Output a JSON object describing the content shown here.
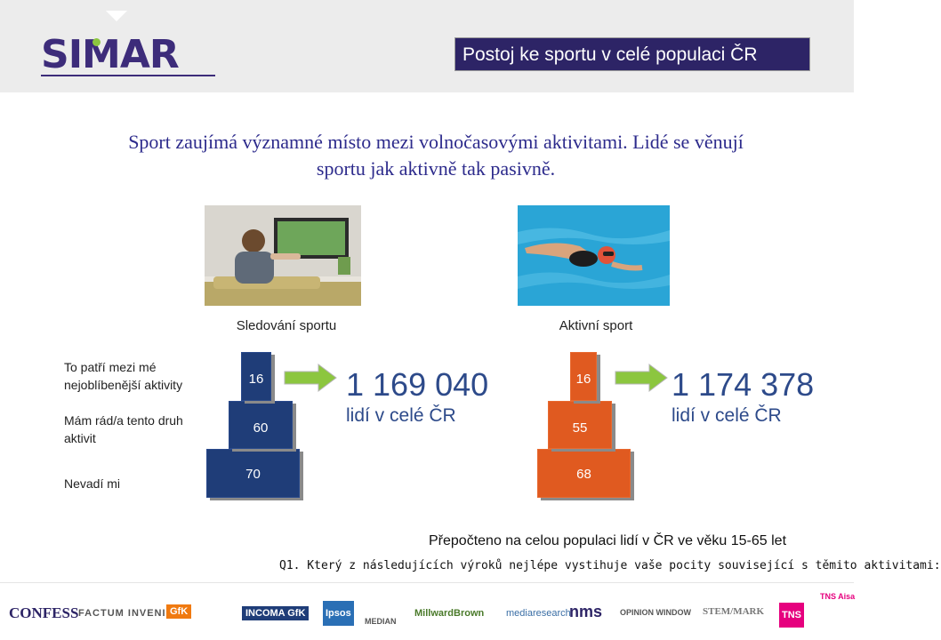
{
  "header": {
    "logo_text": "SIMAR",
    "title": "Postoj ke sportu v celé populaci ČR"
  },
  "subtitle": {
    "line1": "Sport zaujímá významné místo mezi volnočasovými aktivitami. Lidé se věnují",
    "line2": "sportu jak aktivně tak pasivně."
  },
  "columns": {
    "watching": "Sledování sportu",
    "active": "Aktivní sport"
  },
  "row_labels": {
    "favorite": "To patří mezi mé nejoblíbenější aktivity",
    "like": "Mám rád/a tento druh aktivit",
    "dont_mind": "Nevadí mi"
  },
  "chart_data": {
    "type": "bar",
    "categories": [
      "To patří mezi mé nejoblíbenější aktivity",
      "Mám rád/a tento druh aktivit",
      "Nevadí mi"
    ],
    "series": [
      {
        "name": "Sledování sportu",
        "values": [
          16,
          60,
          70
        ],
        "color": "#1f3d78"
      },
      {
        "name": "Aktivní sport",
        "values": [
          16,
          55,
          68
        ],
        "color": "#e05a20"
      }
    ]
  },
  "bar_labels": {
    "watching": [
      "16",
      "60",
      "70"
    ],
    "active": [
      "16",
      "55",
      "68"
    ]
  },
  "totals": {
    "watching_number": "1 169 040",
    "watching_sub": "lidí v celé ČR",
    "active_number": "1 174 378",
    "active_sub": "lidí v celé ČR"
  },
  "note": "Přepočteno na celou populaci lidí v ČR ve věku 15-65 let",
  "question": "Q1. Který z následujících výroků nejlépe vystihuje vaše pocity související s těmito aktivitami:",
  "sponsors": [
    "CONFESS",
    "FACTUM INVENIO",
    "GfK",
    "INCOMA GfK",
    "Ipsos",
    "MEDIAN",
    "MillwardBrown",
    "mediaresearch",
    "nms",
    "OPINION WINDOW",
    "STEM/MARK",
    "TNS",
    "TNS Aisa"
  ],
  "colors": {
    "accent_blue": "#2d2466",
    "bar_blue": "#1f3d78",
    "bar_orange": "#e05a20",
    "arrow_green": "#8cc63f"
  }
}
